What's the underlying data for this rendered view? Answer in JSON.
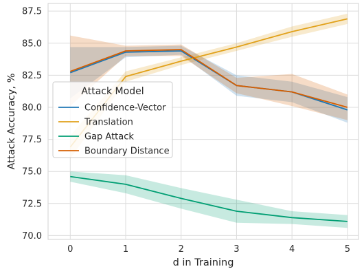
{
  "chart_data": {
    "type": "line",
    "xlabel": "d in Training",
    "ylabel": "Attack Accuracy, %",
    "x": [
      0,
      1,
      2,
      3,
      4,
      5
    ],
    "xticks": [
      "0",
      "1",
      "2",
      "3",
      "4",
      "5"
    ],
    "yticks": [
      "70.0",
      "72.5",
      "75.0",
      "77.5",
      "80.0",
      "82.5",
      "85.0",
      "87.5"
    ],
    "xlim": [
      -0.4,
      5.2
    ],
    "ylim": [
      69.7,
      88.1
    ],
    "grid": true,
    "legend": {
      "title": "Attack Model",
      "placement": "center-left"
    },
    "series": [
      {
        "name": "Confidence-Vector",
        "color": "#1f77b4",
        "values": [
          82.7,
          84.3,
          84.4,
          81.7,
          81.2,
          79.8
        ],
        "ci_low": [
          80.7,
          83.9,
          84.1,
          80.9,
          80.4,
          78.8
        ],
        "ci_high": [
          84.7,
          84.7,
          84.8,
          82.5,
          82.0,
          80.8
        ]
      },
      {
        "name": "Translation",
        "color": "#e1a11a",
        "values": [
          76.9,
          82.4,
          83.6,
          84.7,
          85.9,
          86.9
        ],
        "ci_low": [
          76.0,
          82.0,
          83.3,
          84.4,
          85.5,
          86.5
        ],
        "ci_high": [
          77.8,
          82.8,
          83.9,
          85.0,
          86.3,
          87.3
        ]
      },
      {
        "name": "Gap Attack",
        "color": "#009e73",
        "values": [
          74.6,
          74.0,
          72.9,
          71.9,
          71.4,
          71.1
        ],
        "ci_low": [
          74.2,
          73.3,
          72.1,
          71.0,
          70.9,
          70.6
        ],
        "ci_high": [
          75.0,
          74.7,
          73.7,
          72.8,
          71.9,
          71.6
        ]
      },
      {
        "name": "Boundary Distance",
        "color": "#d55e00",
        "values": [
          82.8,
          84.4,
          84.5,
          81.7,
          81.2,
          80.0
        ],
        "ci_low": [
          80.1,
          84.0,
          84.0,
          81.1,
          80.1,
          79.0
        ],
        "ci_high": [
          85.6,
          84.8,
          84.9,
          82.3,
          82.6,
          81.0
        ]
      }
    ]
  }
}
